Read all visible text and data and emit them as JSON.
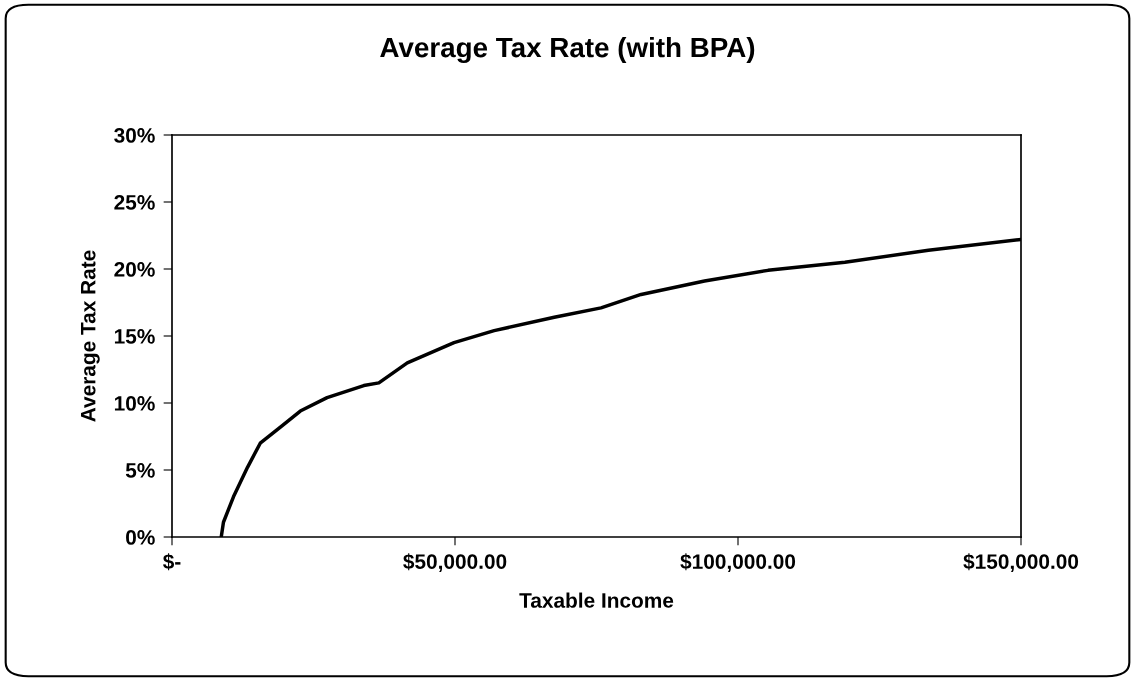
{
  "chart_data": {
    "type": "line",
    "title": "Average Tax Rate (with BPA)",
    "xlabel": "Taxable Income",
    "ylabel": "Average Tax Rate",
    "x": [
      8700,
      9090,
      10860,
      13340,
      15590,
      19430,
      22670,
      27400,
      33890,
      36550,
      41570,
      49830,
      56920,
      67540,
      75800,
      82880,
      94090,
      105310,
      118890,
      133650,
      150000
    ],
    "series": [
      {
        "color": "#000000",
        "values": [
          0,
          1.1,
          3.0,
          5.2,
          7.0,
          8.3,
          9.4,
          10.4,
          11.3,
          11.5,
          13.0,
          14.5,
          15.4,
          16.4,
          17.1,
          18.1,
          19.1,
          19.9,
          20.5,
          21.4,
          22.2
        ]
      }
    ],
    "xlim": [
      0,
      150000
    ],
    "xticks": [
      {
        "value": 0,
        "label": "$-"
      },
      {
        "value": 50000,
        "label": "$50,000.00"
      },
      {
        "value": 100000,
        "label": "$100,000.00"
      },
      {
        "value": 150000,
        "label": "$150,000.00"
      }
    ],
    "ylim": [
      0,
      30
    ],
    "yticks": [
      {
        "value": 0,
        "label": "0%"
      },
      {
        "value": 5,
        "label": "5%"
      },
      {
        "value": 10,
        "label": "10%"
      },
      {
        "value": 15,
        "label": "15%"
      },
      {
        "value": 20,
        "label": "20%"
      },
      {
        "value": 25,
        "label": "25%"
      },
      {
        "value": 30,
        "label": "30%"
      }
    ],
    "grid": false,
    "legend": false,
    "marker": "none",
    "line_style": "solid"
  }
}
